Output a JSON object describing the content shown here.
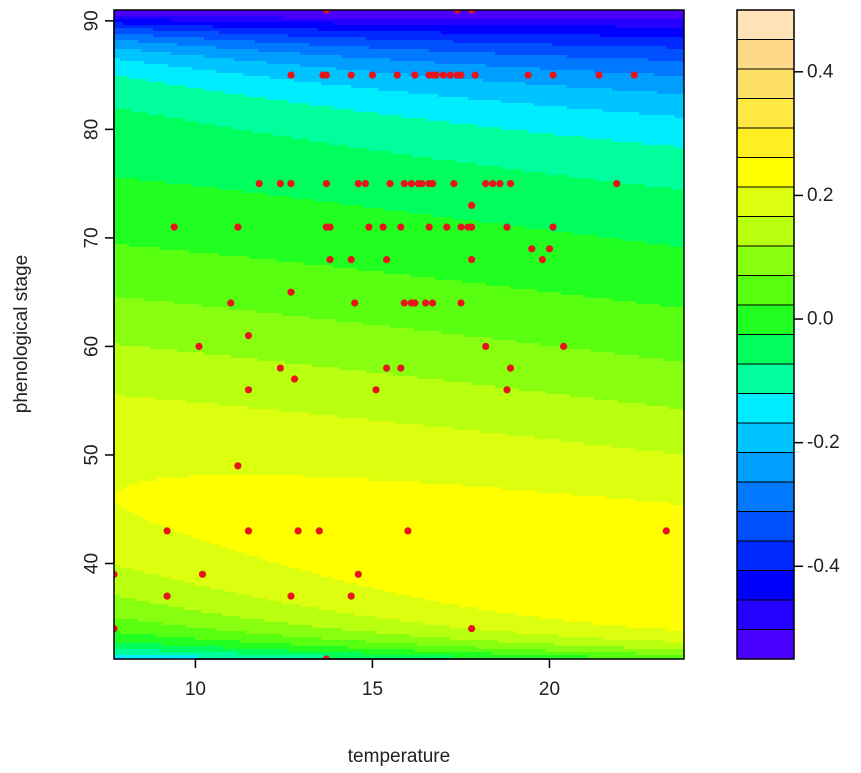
{
  "chart_data": {
    "type": "contour",
    "title": "",
    "xlabel": "temperature",
    "ylabel": "phenological stage",
    "xlim": [
      7.7,
      23.8
    ],
    "ylim": [
      31.2,
      91
    ],
    "xticks": [
      10,
      15,
      20
    ],
    "yticks": [
      40,
      50,
      60,
      70,
      80,
      90
    ],
    "grid": false,
    "point_color": "#e8141b",
    "levels": {
      "min": -0.55,
      "max": 0.5,
      "step": 0.05,
      "colors": [
        "#4a00ff",
        "#2400ff",
        "#0000ff",
        "#0028ff",
        "#0050ff",
        "#0078ff",
        "#009eff",
        "#00c4ff",
        "#00ecff",
        "#00ff9c",
        "#00ff5c",
        "#20ff20",
        "#58ff10",
        "#88ff10",
        "#b8ff10",
        "#dcff10",
        "#ffff00",
        "#ffee22",
        "#ffe844",
        "#ffe066",
        "#ffd98a",
        "#ffe2b8"
      ]
    },
    "colorbar": {
      "tick_values": [
        -0.4,
        -0.2,
        0.0,
        0.2,
        0.4
      ],
      "tick_labels": [
        "-0.4",
        "-0.2",
        "0.0",
        "0.2",
        "0.4"
      ]
    },
    "points": [
      [
        13.7,
        91
      ],
      [
        17.4,
        91
      ],
      [
        17.8,
        91
      ],
      [
        12.7,
        85
      ],
      [
        13.6,
        85
      ],
      [
        13.7,
        85
      ],
      [
        14.4,
        85
      ],
      [
        15.0,
        85
      ],
      [
        15.7,
        85
      ],
      [
        16.2,
        85
      ],
      [
        16.6,
        85
      ],
      [
        16.7,
        85
      ],
      [
        16.8,
        85
      ],
      [
        17.0,
        85
      ],
      [
        17.2,
        85
      ],
      [
        17.4,
        85
      ],
      [
        17.5,
        85
      ],
      [
        17.9,
        85
      ],
      [
        19.4,
        85
      ],
      [
        20.1,
        85
      ],
      [
        21.4,
        85
      ],
      [
        22.4,
        85
      ],
      [
        11.8,
        75
      ],
      [
        12.4,
        75
      ],
      [
        12.7,
        75
      ],
      [
        13.7,
        75
      ],
      [
        14.6,
        75
      ],
      [
        14.8,
        75
      ],
      [
        15.5,
        75
      ],
      [
        15.9,
        75
      ],
      [
        16.1,
        75
      ],
      [
        16.3,
        75
      ],
      [
        16.4,
        75
      ],
      [
        16.6,
        75
      ],
      [
        16.7,
        75
      ],
      [
        17.3,
        75
      ],
      [
        18.2,
        75
      ],
      [
        18.4,
        75
      ],
      [
        18.6,
        75
      ],
      [
        18.9,
        75
      ],
      [
        21.9,
        75
      ],
      [
        17.8,
        73
      ],
      [
        9.4,
        71
      ],
      [
        11.2,
        71
      ],
      [
        13.7,
        71
      ],
      [
        13.8,
        71
      ],
      [
        14.9,
        71
      ],
      [
        15.3,
        71
      ],
      [
        15.8,
        71
      ],
      [
        16.6,
        71
      ],
      [
        17.1,
        71
      ],
      [
        17.5,
        71
      ],
      [
        17.7,
        71
      ],
      [
        17.8,
        71
      ],
      [
        18.8,
        71
      ],
      [
        20.1,
        71
      ],
      [
        19.5,
        69
      ],
      [
        20.0,
        69
      ],
      [
        13.8,
        68
      ],
      [
        14.4,
        68
      ],
      [
        15.4,
        68
      ],
      [
        17.8,
        68
      ],
      [
        19.8,
        68
      ],
      [
        12.7,
        65
      ],
      [
        11.0,
        64
      ],
      [
        14.5,
        64
      ],
      [
        15.9,
        64
      ],
      [
        16.1,
        64
      ],
      [
        16.2,
        64
      ],
      [
        16.5,
        64
      ],
      [
        16.7,
        64
      ],
      [
        17.5,
        64
      ],
      [
        11.5,
        61
      ],
      [
        10.1,
        60
      ],
      [
        18.2,
        60
      ],
      [
        20.4,
        60
      ],
      [
        12.4,
        58
      ],
      [
        15.4,
        58
      ],
      [
        15.8,
        58
      ],
      [
        18.9,
        58
      ],
      [
        12.8,
        57
      ],
      [
        11.5,
        56
      ],
      [
        15.1,
        56
      ],
      [
        18.8,
        56
      ],
      [
        11.2,
        49
      ],
      [
        9.2,
        43
      ],
      [
        11.5,
        43
      ],
      [
        12.9,
        43
      ],
      [
        13.5,
        43
      ],
      [
        16.0,
        43
      ],
      [
        23.3,
        43
      ],
      [
        10.2,
        39
      ],
      [
        14.6,
        39
      ],
      [
        7.7,
        39
      ],
      [
        9.2,
        37
      ],
      [
        12.7,
        37
      ],
      [
        14.4,
        37
      ],
      [
        7.7,
        34
      ],
      [
        17.8,
        34
      ],
      [
        13.7,
        31.2
      ]
    ]
  }
}
